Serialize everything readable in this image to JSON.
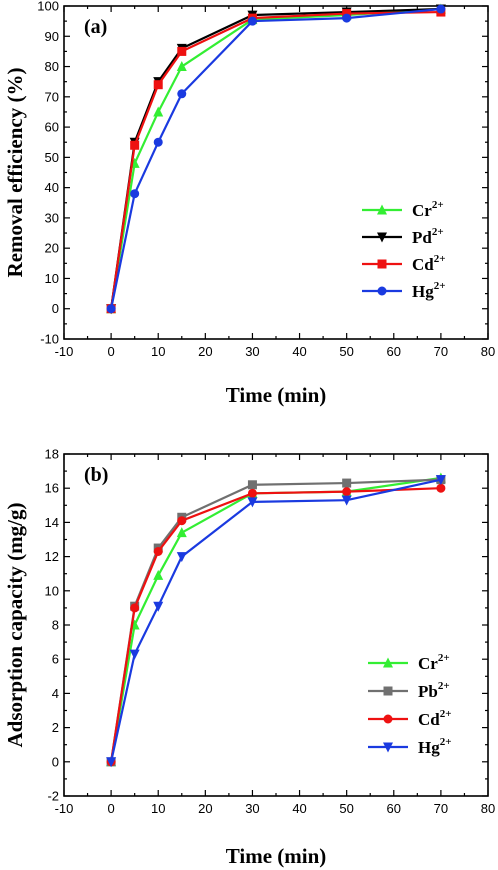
{
  "chart_data": [
    {
      "type": "line",
      "panel_label": "(a)",
      "xlabel": "Time (min)",
      "ylabel": "Removal efficiency (%)",
      "xlim": [
        -10,
        80
      ],
      "ylim": [
        -10,
        100
      ],
      "xticks": [
        -10,
        0,
        10,
        20,
        30,
        40,
        50,
        60,
        70,
        80
      ],
      "yticks": [
        -10,
        0,
        10,
        20,
        30,
        40,
        50,
        60,
        70,
        80,
        90,
        100
      ],
      "x": [
        0,
        5,
        10,
        15,
        30,
        50,
        70
      ],
      "legend_position": "center-right",
      "series": [
        {
          "name": "Cr",
          "sup": "2+",
          "color": "#33ee33",
          "marker": "triangle-up",
          "values": [
            0,
            48,
            65,
            80,
            95.5,
            97,
            99
          ]
        },
        {
          "name": "Pd",
          "sup": "2+",
          "color": "#000000",
          "marker": "triangle-down",
          "values": [
            0,
            55,
            75,
            86,
            97,
            98,
            99
          ]
        },
        {
          "name": "Cd",
          "sup": "2+",
          "color": "#ee1111",
          "marker": "square",
          "values": [
            0,
            54,
            74,
            85,
            96,
            97.5,
            98
          ]
        },
        {
          "name": "Hg",
          "sup": "2+",
          "color": "#1a3ae0",
          "marker": "circle",
          "values": [
            0,
            38,
            55,
            71,
            95,
            96,
            99
          ]
        }
      ]
    },
    {
      "type": "line",
      "panel_label": "(b)",
      "xlabel": "Time (min)",
      "ylabel": "Adsorption capacity (mg/g)",
      "xlim": [
        -10,
        80
      ],
      "ylim": [
        -2,
        18
      ],
      "xticks": [
        -10,
        0,
        10,
        20,
        30,
        40,
        50,
        60,
        70,
        80
      ],
      "yticks": [
        -2,
        0,
        2,
        4,
        6,
        8,
        10,
        12,
        14,
        16,
        18
      ],
      "x": [
        0,
        5,
        10,
        15,
        30,
        50,
        70
      ],
      "legend_position": "center-right",
      "series": [
        {
          "name": "Cr",
          "sup": "2+",
          "color": "#33ee33",
          "marker": "triangle-up",
          "values": [
            0,
            8.0,
            10.9,
            13.4,
            15.7,
            15.8,
            16.6
          ]
        },
        {
          "name": "Pb",
          "sup": "2+",
          "color": "#707070",
          "marker": "square",
          "values": [
            0,
            9.1,
            12.5,
            14.3,
            16.2,
            16.3,
            16.5
          ]
        },
        {
          "name": "Cd",
          "sup": "2+",
          "color": "#ee1111",
          "marker": "circle",
          "values": [
            0,
            9.0,
            12.3,
            14.1,
            15.7,
            15.8,
            16.0
          ]
        },
        {
          "name": "Hg",
          "sup": "2+",
          "color": "#1a3ae0",
          "marker": "triangle-down",
          "values": [
            0,
            6.3,
            9.1,
            12.0,
            15.2,
            15.3,
            16.5
          ]
        }
      ]
    }
  ]
}
